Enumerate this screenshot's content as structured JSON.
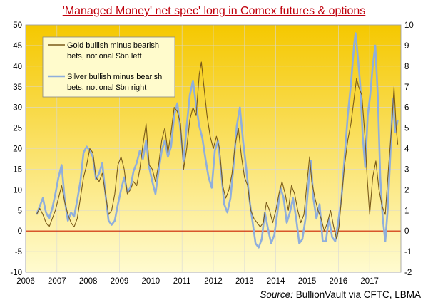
{
  "chart_data": {
    "type": "line",
    "title": "'Managed Money' net spec' long in Comex futures  & options",
    "x_axis": {
      "min": 2006,
      "max": 2018,
      "ticks": [
        "2006",
        "2007",
        "2008",
        "2009",
        "2010",
        "2011",
        "2012",
        "2013",
        "2014",
        "2015",
        "2016",
        "2017"
      ]
    },
    "y_left": {
      "min": -10,
      "max": 50,
      "ticks": [
        "-10",
        "-5",
        "0",
        "5",
        "10",
        "15",
        "20",
        "25",
        "30",
        "35",
        "40",
        "45",
        "50"
      ]
    },
    "y_right": {
      "min": -2,
      "max": 10,
      "ticks": [
        "-2",
        "-1",
        "0",
        "1",
        "2",
        "3",
        "4",
        "5",
        "6",
        "7",
        "8",
        "9",
        "10"
      ]
    },
    "grid": true,
    "legend_position": "top-left",
    "series": [
      {
        "name": "Gold bullish minus bearish bets, notional $bn left",
        "axis": "left",
        "color": "#7a5a18",
        "points": [
          [
            2006.35,
            4
          ],
          [
            2006.45,
            5.5
          ],
          [
            2006.55,
            4
          ],
          [
            2006.65,
            2
          ],
          [
            2006.75,
            1
          ],
          [
            2006.85,
            3
          ],
          [
            2006.95,
            5
          ],
          [
            2007.05,
            8
          ],
          [
            2007.15,
            11
          ],
          [
            2007.25,
            7
          ],
          [
            2007.35,
            4
          ],
          [
            2007.45,
            2
          ],
          [
            2007.55,
            1
          ],
          [
            2007.65,
            3
          ],
          [
            2007.75,
            8
          ],
          [
            2007.85,
            13
          ],
          [
            2007.95,
            16
          ],
          [
            2008.05,
            20
          ],
          [
            2008.15,
            19
          ],
          [
            2008.25,
            13
          ],
          [
            2008.35,
            12
          ],
          [
            2008.45,
            14
          ],
          [
            2008.55,
            9
          ],
          [
            2008.65,
            4
          ],
          [
            2008.75,
            5
          ],
          [
            2008.85,
            9
          ],
          [
            2008.95,
            16
          ],
          [
            2009.05,
            18
          ],
          [
            2009.15,
            15
          ],
          [
            2009.25,
            9
          ],
          [
            2009.35,
            10
          ],
          [
            2009.45,
            12
          ],
          [
            2009.55,
            11
          ],
          [
            2009.65,
            15
          ],
          [
            2009.75,
            21
          ],
          [
            2009.85,
            26
          ],
          [
            2009.95,
            16
          ],
          [
            2010.05,
            15
          ],
          [
            2010.15,
            12
          ],
          [
            2010.25,
            16
          ],
          [
            2010.35,
            22
          ],
          [
            2010.45,
            25
          ],
          [
            2010.55,
            19
          ],
          [
            2010.65,
            24
          ],
          [
            2010.75,
            30
          ],
          [
            2010.85,
            29
          ],
          [
            2010.95,
            26
          ],
          [
            2011.05,
            15
          ],
          [
            2011.15,
            20
          ],
          [
            2011.25,
            27
          ],
          [
            2011.35,
            30
          ],
          [
            2011.45,
            28
          ],
          [
            2011.55,
            38
          ],
          [
            2011.62,
            41
          ],
          [
            2011.7,
            35
          ],
          [
            2011.8,
            28
          ],
          [
            2011.9,
            23
          ],
          [
            2012.0,
            20
          ],
          [
            2012.1,
            23
          ],
          [
            2012.2,
            20
          ],
          [
            2012.3,
            11
          ],
          [
            2012.4,
            8
          ],
          [
            2012.5,
            10
          ],
          [
            2012.6,
            14
          ],
          [
            2012.7,
            21
          ],
          [
            2012.8,
            25
          ],
          [
            2012.9,
            18
          ],
          [
            2013.0,
            13
          ],
          [
            2013.1,
            11
          ],
          [
            2013.2,
            5
          ],
          [
            2013.3,
            3
          ],
          [
            2013.4,
            2
          ],
          [
            2013.5,
            1
          ],
          [
            2013.6,
            2
          ],
          [
            2013.7,
            7
          ],
          [
            2013.8,
            5
          ],
          [
            2013.9,
            2
          ],
          [
            2014.0,
            5
          ],
          [
            2014.1,
            9
          ],
          [
            2014.2,
            12
          ],
          [
            2014.3,
            9
          ],
          [
            2014.4,
            5
          ],
          [
            2014.5,
            11
          ],
          [
            2014.6,
            9
          ],
          [
            2014.7,
            5
          ],
          [
            2014.8,
            2
          ],
          [
            2014.9,
            4
          ],
          [
            2015.0,
            12
          ],
          [
            2015.08,
            18
          ],
          [
            2015.15,
            12
          ],
          [
            2015.25,
            8
          ],
          [
            2015.35,
            5
          ],
          [
            2015.45,
            3
          ],
          [
            2015.55,
            0
          ],
          [
            2015.65,
            2
          ],
          [
            2015.75,
            5
          ],
          [
            2015.85,
            1
          ],
          [
            2015.95,
            -2
          ],
          [
            2016.02,
            1
          ],
          [
            2016.1,
            8
          ],
          [
            2016.2,
            16
          ],
          [
            2016.3,
            22
          ],
          [
            2016.4,
            26
          ],
          [
            2016.5,
            32
          ],
          [
            2016.58,
            37
          ],
          [
            2016.65,
            35
          ],
          [
            2016.75,
            33
          ],
          [
            2016.85,
            23
          ],
          [
            2016.92,
            13
          ],
          [
            2017.0,
            4
          ],
          [
            2017.1,
            13
          ],
          [
            2017.2,
            17
          ],
          [
            2017.3,
            10
          ],
          [
            2017.4,
            6
          ],
          [
            2017.5,
            4
          ],
          [
            2017.6,
            15
          ],
          [
            2017.7,
            25
          ],
          [
            2017.78,
            35
          ],
          [
            2017.85,
            25
          ],
          [
            2017.9,
            21
          ]
        ]
      },
      {
        "name": "Silver bullish minus bearish bets, notional $bn right",
        "axis": "right",
        "color": "#8faedc",
        "points": [
          [
            2006.35,
            0.8
          ],
          [
            2006.45,
            1.2
          ],
          [
            2006.55,
            1.6
          ],
          [
            2006.65,
            0.9
          ],
          [
            2006.75,
            0.6
          ],
          [
            2006.85,
            1.1
          ],
          [
            2006.95,
            1.8
          ],
          [
            2007.05,
            2.6
          ],
          [
            2007.15,
            3.2
          ],
          [
            2007.25,
            1.5
          ],
          [
            2007.35,
            0.5
          ],
          [
            2007.45,
            0.9
          ],
          [
            2007.55,
            0.7
          ],
          [
            2007.65,
            1.5
          ],
          [
            2007.75,
            2.4
          ],
          [
            2007.85,
            3.8
          ],
          [
            2007.95,
            4.1
          ],
          [
            2008.05,
            3.9
          ],
          [
            2008.15,
            3.6
          ],
          [
            2008.25,
            2.5
          ],
          [
            2008.35,
            2.8
          ],
          [
            2008.45,
            3.3
          ],
          [
            2008.55,
            1.8
          ],
          [
            2008.65,
            0.5
          ],
          [
            2008.75,
            0.3
          ],
          [
            2008.85,
            0.5
          ],
          [
            2008.95,
            1.3
          ],
          [
            2009.05,
            2.0
          ],
          [
            2009.15,
            2.6
          ],
          [
            2009.25,
            1.9
          ],
          [
            2009.35,
            2.1
          ],
          [
            2009.45,
            2.9
          ],
          [
            2009.55,
            3.3
          ],
          [
            2009.65,
            3.9
          ],
          [
            2009.75,
            3.5
          ],
          [
            2009.85,
            4.4
          ],
          [
            2009.95,
            3.1
          ],
          [
            2010.05,
            2.4
          ],
          [
            2010.15,
            1.8
          ],
          [
            2010.25,
            2.9
          ],
          [
            2010.35,
            3.9
          ],
          [
            2010.45,
            4.4
          ],
          [
            2010.55,
            3.6
          ],
          [
            2010.65,
            4.1
          ],
          [
            2010.75,
            5.6
          ],
          [
            2010.85,
            6.2
          ],
          [
            2010.95,
            4.9
          ],
          [
            2011.05,
            3.4
          ],
          [
            2011.15,
            5.1
          ],
          [
            2011.25,
            6.6
          ],
          [
            2011.35,
            7.3
          ],
          [
            2011.45,
            6.1
          ],
          [
            2011.55,
            5.1
          ],
          [
            2011.65,
            4.5
          ],
          [
            2011.75,
            3.5
          ],
          [
            2011.85,
            2.6
          ],
          [
            2011.95,
            2.1
          ],
          [
            2012.05,
            3.9
          ],
          [
            2012.15,
            4.4
          ],
          [
            2012.25,
            2.9
          ],
          [
            2012.35,
            1.3
          ],
          [
            2012.45,
            0.9
          ],
          [
            2012.55,
            1.6
          ],
          [
            2012.65,
            3.2
          ],
          [
            2012.75,
            5.1
          ],
          [
            2012.85,
            6.0
          ],
          [
            2012.95,
            4.4
          ],
          [
            2013.05,
            3.1
          ],
          [
            2013.15,
            1.6
          ],
          [
            2013.25,
            0.5
          ],
          [
            2013.35,
            -0.6
          ],
          [
            2013.45,
            -0.8
          ],
          [
            2013.55,
            -0.4
          ],
          [
            2013.65,
            0.9
          ],
          [
            2013.75,
            0.1
          ],
          [
            2013.85,
            -0.6
          ],
          [
            2013.95,
            -0.2
          ],
          [
            2014.05,
            0.9
          ],
          [
            2014.15,
            2.1
          ],
          [
            2014.25,
            1.6
          ],
          [
            2014.35,
            0.4
          ],
          [
            2014.45,
            0.9
          ],
          [
            2014.55,
            1.6
          ],
          [
            2014.65,
            0.6
          ],
          [
            2014.75,
            -0.6
          ],
          [
            2014.85,
            -0.4
          ],
          [
            2014.95,
            0.6
          ],
          [
            2015.05,
            2.4
          ],
          [
            2015.12,
            3.4
          ],
          [
            2015.2,
            1.6
          ],
          [
            2015.3,
            0.6
          ],
          [
            2015.4,
            1.3
          ],
          [
            2015.5,
            -0.5
          ],
          [
            2015.6,
            -0.5
          ],
          [
            2015.7,
            0.6
          ],
          [
            2015.8,
            -0.3
          ],
          [
            2015.9,
            -0.5
          ],
          [
            2016.0,
            0.5
          ],
          [
            2016.1,
            1.6
          ],
          [
            2016.2,
            3.6
          ],
          [
            2016.3,
            5.6
          ],
          [
            2016.4,
            7.1
          ],
          [
            2016.5,
            9.0
          ],
          [
            2016.55,
            9.6
          ],
          [
            2016.62,
            8.5
          ],
          [
            2016.7,
            7.1
          ],
          [
            2016.78,
            4.6
          ],
          [
            2016.86,
            3.1
          ],
          [
            2016.94,
            5.6
          ],
          [
            2017.02,
            6.6
          ],
          [
            2017.1,
            8.0
          ],
          [
            2017.18,
            9.0
          ],
          [
            2017.26,
            6.6
          ],
          [
            2017.34,
            2.6
          ],
          [
            2017.42,
            0.6
          ],
          [
            2017.5,
            -0.5
          ],
          [
            2017.58,
            1.1
          ],
          [
            2017.66,
            3.6
          ],
          [
            2017.74,
            6.4
          ],
          [
            2017.82,
            4.8
          ],
          [
            2017.9,
            5.4
          ]
        ]
      }
    ],
    "source_label": "Source:",
    "source_text": " BullionVault via CFTC, LBMA"
  },
  "colors": {
    "bg_top": "#f5c800",
    "bg_bottom": "#fffbd0",
    "zero_line": "#cc2200",
    "legend_bg": "#fffbcc",
    "title": "#c0000c"
  }
}
